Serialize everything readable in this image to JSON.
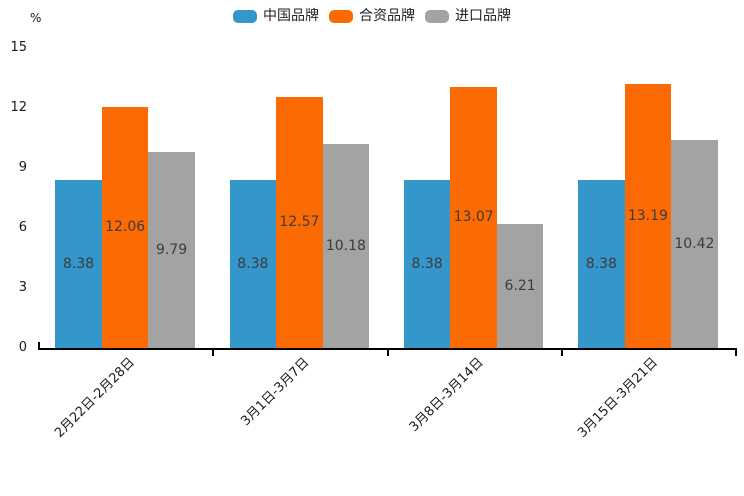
{
  "chart_data": {
    "type": "bar",
    "title": "",
    "ylabel": "%",
    "xlabel": "",
    "ylim": [
      0,
      15
    ],
    "yticks": [
      0,
      3,
      6,
      9,
      12,
      15
    ],
    "grid": false,
    "legend_position": "top",
    "bar_value_labels_visible": true,
    "categories": [
      "2月22日-2月28日",
      "3月1日-3月7日",
      "3月8日-3月14日",
      "3月15日-3月21日"
    ],
    "series": [
      {
        "name": "中国品牌",
        "color": "#3496CB",
        "values": [
          8.38,
          8.38,
          8.38,
          8.38
        ]
      },
      {
        "name": "合资品牌",
        "color": "#FC6A03",
        "values": [
          12.06,
          12.57,
          13.07,
          13.19
        ]
      },
      {
        "name": "进口品牌",
        "color": "#A3A3A3",
        "values": [
          9.79,
          10.18,
          6.21,
          10.42
        ]
      }
    ],
    "colors": {
      "axis": "#000000",
      "tick_text": "#1a1a1a",
      "value_label_text": "#3c3c3c"
    }
  }
}
